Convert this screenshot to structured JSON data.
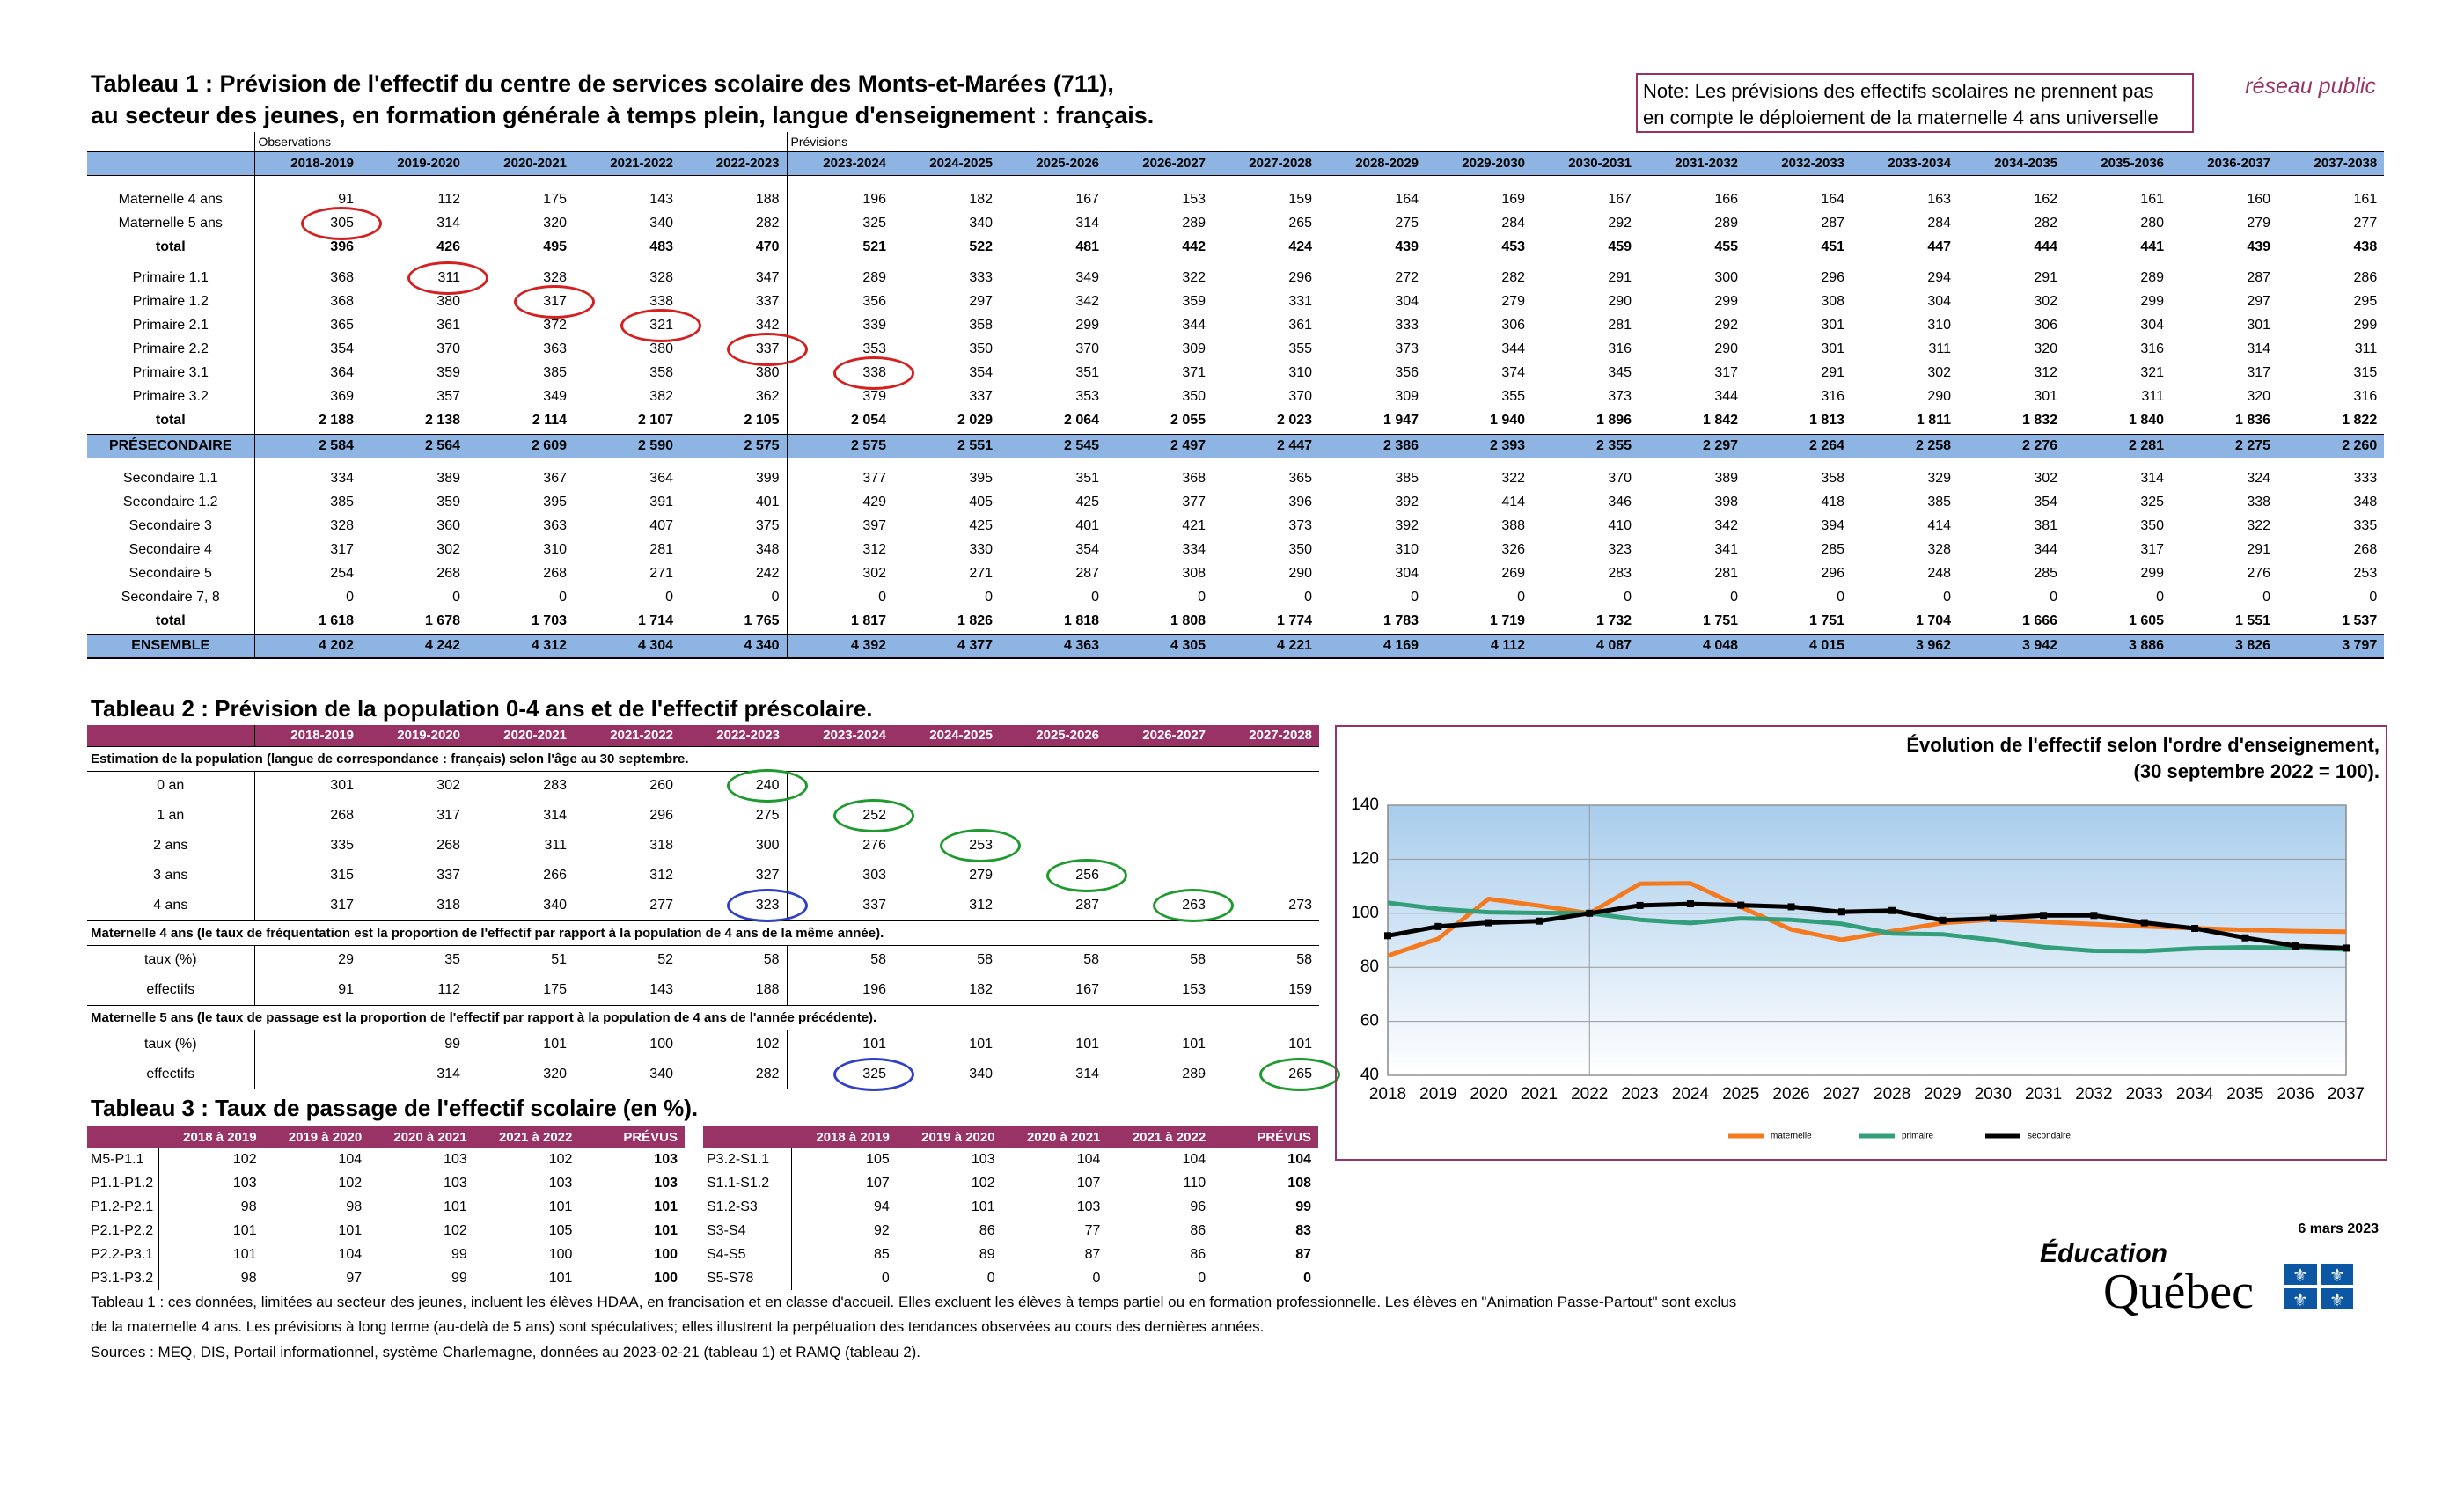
{
  "header": {
    "title_line1": "Tableau 1 : Prévision de l'effectif du centre de services scolaire des Monts-et-Marées (711),",
    "title_line2": "au secteur des jeunes, en formation générale à temps plein, langue d'enseignement : français.",
    "note": [
      "Note: Les prévisions des effectifs scolaires ne prennent pas",
      "en compte le déploiement de la maternelle 4 ans universelle"
    ],
    "network": "réseau public"
  },
  "table1": {
    "group_labels": [
      "Observations",
      "Prévisions"
    ],
    "years": [
      "2018-2019",
      "2019-2020",
      "2020-2021",
      "2021-2022",
      "2022-2023",
      "2023-2024",
      "2024-2025",
      "2025-2026",
      "2026-2027",
      "2027-2028",
      "2028-2029",
      "2029-2030",
      "2030-2031",
      "2031-2032",
      "2032-2033",
      "2033-2034",
      "2034-2035",
      "2035-2036",
      "2036-2037",
      "2037-2038"
    ],
    "sections": [
      [
        {
          "label": "Maternelle 4 ans",
          "values": [
            91,
            112,
            175,
            143,
            188,
            196,
            182,
            167,
            153,
            159,
            164,
            169,
            167,
            166,
            164,
            163,
            162,
            161,
            160,
            161
          ]
        },
        {
          "label": "Maternelle 5 ans",
          "values": [
            305,
            314,
            320,
            340,
            282,
            325,
            340,
            314,
            289,
            265,
            275,
            284,
            292,
            289,
            287,
            284,
            282,
            280,
            279,
            277
          ]
        },
        {
          "label": "total",
          "values": [
            396,
            426,
            495,
            483,
            470,
            521,
            522,
            481,
            442,
            424,
            439,
            453,
            459,
            455,
            451,
            447,
            444,
            441,
            439,
            438
          ]
        }
      ],
      [
        {
          "label": "Primaire 1.1",
          "values": [
            368,
            311,
            328,
            328,
            347,
            289,
            333,
            349,
            322,
            296,
            272,
            282,
            291,
            300,
            296,
            294,
            291,
            289,
            287,
            286
          ]
        },
        {
          "label": "Primaire 1.2",
          "values": [
            368,
            380,
            317,
            338,
            337,
            356,
            297,
            342,
            359,
            331,
            304,
            279,
            290,
            299,
            308,
            304,
            302,
            299,
            297,
            295
          ]
        },
        {
          "label": "Primaire 2.1",
          "values": [
            365,
            361,
            372,
            321,
            342,
            339,
            358,
            299,
            344,
            361,
            333,
            306,
            281,
            292,
            301,
            310,
            306,
            304,
            301,
            299
          ]
        },
        {
          "label": "Primaire 2.2",
          "values": [
            354,
            370,
            363,
            380,
            337,
            353,
            350,
            370,
            309,
            355,
            373,
            344,
            316,
            290,
            301,
            311,
            320,
            316,
            314,
            311
          ]
        },
        {
          "label": "Primaire 3.1",
          "values": [
            364,
            359,
            385,
            358,
            380,
            338,
            354,
            351,
            371,
            310,
            356,
            374,
            345,
            317,
            291,
            302,
            312,
            321,
            317,
            315
          ]
        },
        {
          "label": "Primaire 3.2",
          "values": [
            369,
            357,
            349,
            382,
            362,
            379,
            337,
            353,
            350,
            370,
            309,
            355,
            373,
            344,
            316,
            290,
            301,
            311,
            320,
            316
          ]
        },
        {
          "label": "total",
          "values": [
            "2 188",
            "2 138",
            "2 114",
            "2 107",
            "2 105",
            "2 054",
            "2 029",
            "2 064",
            "2 055",
            "2 023",
            "1 947",
            "1 940",
            "1 896",
            "1 842",
            "1 813",
            "1 811",
            "1 832",
            "1 840",
            "1 836",
            "1 822"
          ]
        }
      ],
      [
        {
          "label": "PRÉSECONDAIRE",
          "values": [
            "2 584",
            "2 564",
            "2 609",
            "2 590",
            "2 575",
            "2 575",
            "2 551",
            "2 545",
            "2 497",
            "2 447",
            "2 386",
            "2 393",
            "2 355",
            "2 297",
            "2 264",
            "2 258",
            "2 276",
            "2 281",
            "2 275",
            "2 260"
          ]
        }
      ],
      [
        {
          "label": "Secondaire 1.1",
          "values": [
            334,
            389,
            367,
            364,
            399,
            377,
            395,
            351,
            368,
            365,
            385,
            322,
            370,
            389,
            358,
            329,
            302,
            314,
            324,
            333
          ]
        },
        {
          "label": "Secondaire 1.2",
          "values": [
            385,
            359,
            395,
            391,
            401,
            429,
            405,
            425,
            377,
            396,
            392,
            414,
            346,
            398,
            418,
            385,
            354,
            325,
            338,
            348
          ]
        },
        {
          "label": "Secondaire 3",
          "values": [
            328,
            360,
            363,
            407,
            375,
            397,
            425,
            401,
            421,
            373,
            392,
            388,
            410,
            342,
            394,
            414,
            381,
            350,
            322,
            335
          ]
        },
        {
          "label": "Secondaire 4",
          "values": [
            317,
            302,
            310,
            281,
            348,
            312,
            330,
            354,
            334,
            350,
            310,
            326,
            323,
            341,
            285,
            328,
            344,
            317,
            291,
            268
          ]
        },
        {
          "label": "Secondaire 5",
          "values": [
            254,
            268,
            268,
            271,
            242,
            302,
            271,
            287,
            308,
            290,
            304,
            269,
            283,
            281,
            296,
            248,
            285,
            299,
            276,
            253
          ]
        },
        {
          "label": "Secondaire 7, 8",
          "values": [
            0,
            0,
            0,
            0,
            0,
            0,
            0,
            0,
            0,
            0,
            0,
            0,
            0,
            0,
            0,
            0,
            0,
            0,
            0,
            0
          ]
        },
        {
          "label": "total",
          "values": [
            "1 618",
            "1 678",
            "1 703",
            "1 714",
            "1 765",
            "1 817",
            "1 826",
            "1 818",
            "1 808",
            "1 774",
            "1 783",
            "1 719",
            "1 732",
            "1 751",
            "1 751",
            "1 704",
            "1 666",
            "1 605",
            "1 551",
            "1 537"
          ]
        }
      ],
      [
        {
          "label": "ENSEMBLE",
          "values": [
            "4 202",
            "4 242",
            "4 312",
            "4 304",
            "4 340",
            "4 392",
            "4 377",
            "4 363",
            "4 305",
            "4 221",
            "4 169",
            "4 112",
            "4 087",
            "4 048",
            "4 015",
            "3 962",
            "3 942",
            "3 886",
            "3 826",
            "3 797"
          ]
        }
      ]
    ]
  },
  "table2": {
    "title": "Tableau 2 : Prévision de la population 0-4 ans et de l'effectif préscolaire.",
    "years": [
      "2018-2019",
      "2019-2020",
      "2020-2021",
      "2021-2022",
      "2022-2023",
      "2023-2024",
      "2024-2025",
      "2025-2026",
      "2026-2027",
      "2027-2028"
    ],
    "groups": [
      {
        "caption": "Estimation de la population (langue de correspondance : français) selon l'âge au 30 septembre.",
        "rows": [
          {
            "label": "0 an",
            "values": [
              301,
              302,
              283,
              260,
              240
            ]
          },
          {
            "label": "1 an",
            "values": [
              268,
              317,
              314,
              296,
              275,
              252
            ]
          },
          {
            "label": "2 ans",
            "values": [
              335,
              268,
              311,
              318,
              300,
              276,
              253
            ]
          },
          {
            "label": "3 ans",
            "values": [
              315,
              337,
              266,
              312,
              327,
              303,
              279,
              256
            ]
          },
          {
            "label": "4 ans",
            "values": [
              317,
              318,
              340,
              277,
              323,
              337,
              312,
              287,
              263,
              273
            ]
          }
        ]
      },
      {
        "caption": "Maternelle 4 ans (le taux de fréquentation est la proportion de l'effectif par rapport à la population de 4 ans de la même année).",
        "rows": [
          {
            "label": "taux (%)",
            "values": [
              29,
              35,
              51,
              52,
              58,
              58,
              58,
              58,
              58,
              58
            ]
          },
          {
            "label": "effectifs",
            "values": [
              91,
              112,
              175,
              143,
              188,
              196,
              182,
              167,
              153,
              159
            ]
          }
        ]
      },
      {
        "caption": "Maternelle 5 ans (le taux de passage est la proportion de l'effectif par rapport à la population de 4 ans de l'année précédente).",
        "rows": [
          {
            "label": "taux (%)",
            "values": [
              null,
              99,
              101,
              100,
              102,
              101,
              101,
              101,
              101,
              101
            ]
          },
          {
            "label": "effectifs",
            "values": [
              null,
              314,
              320,
              340,
              282,
              325,
              340,
              314,
              289,
              265
            ]
          }
        ]
      }
    ]
  },
  "table3": {
    "title": "Tableau 3 : Taux de passage de l'effectif scolaire (en %).",
    "left": {
      "headers": [
        "2018 à 2019",
        "2019 à 2020",
        "2020 à 2021",
        "2021 à 2022",
        "PRÉVUS"
      ],
      "rows": [
        {
          "label": "M5-P1.1",
          "values": [
            102,
            104,
            103,
            102,
            103
          ]
        },
        {
          "label": "P1.1-P1.2",
          "values": [
            103,
            102,
            103,
            103,
            103
          ]
        },
        {
          "label": "P1.2-P2.1",
          "values": [
            98,
            98,
            101,
            101,
            101
          ]
        },
        {
          "label": "P2.1-P2.2",
          "values": [
            101,
            101,
            102,
            105,
            101
          ]
        },
        {
          "label": "P2.2-P3.1",
          "values": [
            101,
            104,
            99,
            100,
            100
          ]
        },
        {
          "label": "P3.1-P3.2",
          "values": [
            98,
            97,
            99,
            101,
            100
          ]
        }
      ]
    },
    "right": {
      "headers": [
        "2018 à 2019",
        "2019 à 2020",
        "2020 à 2021",
        "2021 à 2022",
        "PRÉVUS"
      ],
      "rows": [
        {
          "label": "P3.2-S1.1",
          "values": [
            105,
            103,
            104,
            104,
            104
          ]
        },
        {
          "label": "S1.1-S1.2",
          "values": [
            107,
            102,
            107,
            110,
            108
          ]
        },
        {
          "label": "S1.2-S3",
          "values": [
            94,
            101,
            103,
            96,
            99
          ]
        },
        {
          "label": "S3-S4",
          "values": [
            92,
            86,
            77,
            86,
            83
          ]
        },
        {
          "label": "S4-S5",
          "values": [
            85,
            89,
            87,
            86,
            87
          ]
        },
        {
          "label": "S5-S78",
          "values": [
            0,
            0,
            0,
            0,
            0
          ]
        }
      ]
    }
  },
  "chart_data": {
    "type": "line",
    "title": "Évolution de l'effectif selon l'ordre d'enseignement,",
    "subtitle": "(30 septembre 2022 = 100).",
    "x": [
      2018,
      2019,
      2020,
      2021,
      2022,
      2023,
      2024,
      2025,
      2026,
      2027,
      2028,
      2029,
      2030,
      2031,
      2032,
      2033,
      2034,
      2035,
      2036,
      2037
    ],
    "xlim": [
      2018,
      2037
    ],
    "xticks": [
      2018,
      2019,
      2020,
      2021,
      2022,
      2023,
      2024,
      2025,
      2026,
      2027,
      2028,
      2029,
      2030,
      2031,
      2032,
      2033,
      2034,
      2035,
      2036,
      2037
    ],
    "ylim": [
      40,
      140
    ],
    "yticks": [
      40,
      60,
      80,
      100,
      120,
      140
    ],
    "grid": true,
    "legend": "bottom",
    "series": [
      {
        "name": "maternelle",
        "color": "#f47a20",
        "values": [
          84.3,
          90.6,
          105.3,
          102.8,
          100,
          110.9,
          111.1,
          102.3,
          94.0,
          90.2,
          93.4,
          96.4,
          97.7,
          96.8,
          96.0,
          95.1,
          94.5,
          93.8,
          93.4,
          93.2
        ]
      },
      {
        "name": "primaire",
        "color": "#339e7a",
        "values": [
          103.9,
          101.6,
          100.4,
          100.1,
          100,
          97.6,
          96.4,
          98.1,
          97.6,
          96.1,
          92.5,
          92.2,
          90.1,
          87.5,
          86.1,
          86.0,
          87.0,
          87.4,
          87.2,
          86.6
        ]
      },
      {
        "name": "secondaire",
        "color": "#000000",
        "marker": "square",
        "values": [
          91.7,
          95.1,
          96.5,
          97.1,
          100,
          102.9,
          103.5,
          103.0,
          102.4,
          100.5,
          101.0,
          97.4,
          98.1,
          99.2,
          99.2,
          96.5,
          94.4,
          90.9,
          87.9,
          87.1
        ]
      }
    ]
  },
  "footer": {
    "date": "6 mars 2023",
    "notes": [
      "Tableau 1 : ces données, limitées au secteur des jeunes, incluent les élèves HDAA, en francisation et en classe d'accueil. Elles excluent les élèves à temps partiel ou en formation professionnelle. Les élèves en \"Animation Passe-Partout\" sont exclus",
      "de la maternelle 4 ans. Les prévisions à long terme (au-delà de 5 ans) sont spéculatives; elles illustrent la perpétuation des tendances observées au cours des dernières années.",
      "Sources : MEQ, DIS, Portail informationnel, système Charlemagne, données au 2023-02-21 (tableau 1) et RAMQ (tableau 2)."
    ],
    "logo_line1": "Éducation",
    "logo_line2": "Québec"
  }
}
